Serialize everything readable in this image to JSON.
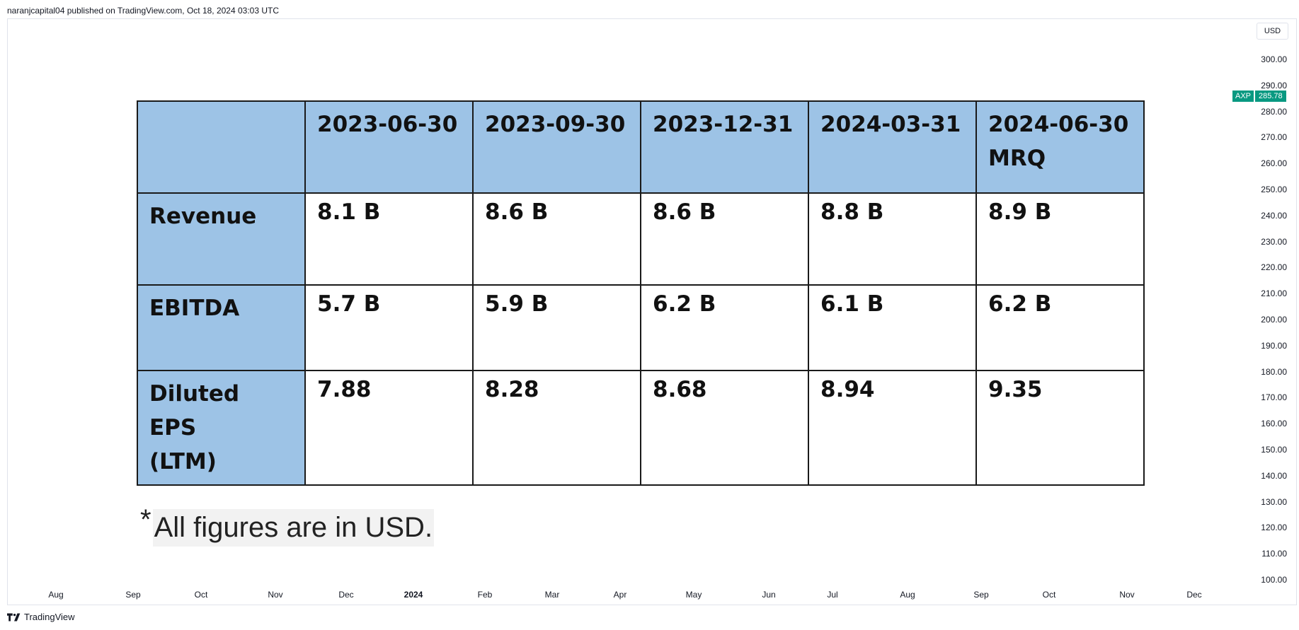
{
  "header": {
    "published_text": "naranjcapital04 published on TradingView.com, Oct 18, 2024 03:03 UTC"
  },
  "toolbar": {
    "currency_label": "USD"
  },
  "price_axis": {
    "ticks": [
      "300.00",
      "290.00",
      "280.00",
      "270.00",
      "260.00",
      "250.00",
      "240.00",
      "230.00",
      "220.00",
      "210.00",
      "200.00",
      "190.00",
      "180.00",
      "170.00",
      "160.00",
      "150.00",
      "140.00",
      "130.00",
      "120.00",
      "110.00",
      "100.00"
    ],
    "current": {
      "symbol": "AXP",
      "value": "285.78",
      "color": "#089981"
    }
  },
  "time_axis": {
    "ticks": [
      "Aug",
      "Sep",
      "Oct",
      "Nov",
      "Dec",
      "2024",
      "Feb",
      "Mar",
      "Apr",
      "May",
      "Jun",
      "Jul",
      "Aug",
      "Sep",
      "Oct",
      "Nov",
      "Dec"
    ]
  },
  "table": {
    "header": [
      "",
      "2023-06-30",
      "2023-09-30",
      "2023-12-31",
      "2024-03-31",
      "2024-06-30 MRQ"
    ],
    "header_lines": [
      [
        ""
      ],
      [
        "2023-06-30"
      ],
      [
        "2023-09-30"
      ],
      [
        "2023-12-31"
      ],
      [
        "2024-03-31"
      ],
      [
        "2024-06-30",
        "MRQ"
      ]
    ],
    "rows": [
      {
        "label": "Revenue",
        "label_lines": [
          "Revenue"
        ],
        "values": [
          "8.1 B",
          "8.6 B",
          "8.6 B",
          "8.8 B",
          "8.9 B"
        ]
      },
      {
        "label": "EBITDA",
        "label_lines": [
          "EBITDA"
        ],
        "values": [
          "5.7 B",
          "5.9 B",
          "6.2 B",
          "6.1 B",
          "6.2 B"
        ]
      },
      {
        "label": "Diluted EPS (LTM)",
        "label_lines": [
          "Diluted EPS",
          "(LTM)"
        ],
        "values": [
          "7.88",
          "8.28",
          "8.68",
          "8.94",
          "9.35"
        ]
      }
    ],
    "header_color": "#9dc3e6"
  },
  "footnote": {
    "star": "*",
    "text": "All figures are in USD."
  },
  "branding": {
    "name": "TradingView"
  }
}
